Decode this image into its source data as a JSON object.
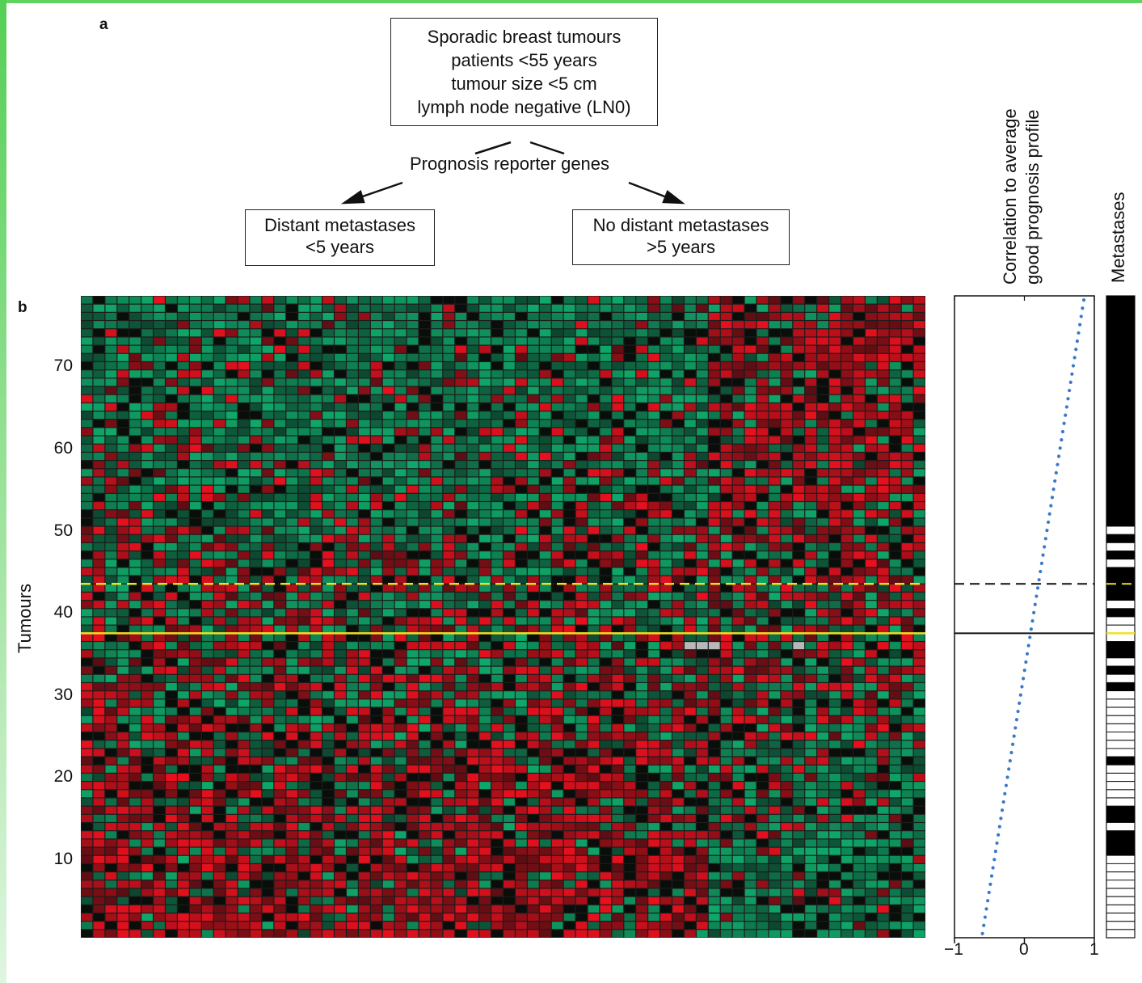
{
  "panel_a": {
    "letter": "a",
    "top_box": [
      "Sporadic breast tumours",
      "patients <55 years",
      "tumour size <5 cm",
      "lymph node negative (LN0)"
    ],
    "reporter_label": "Prognosis reporter genes",
    "left_box": [
      "Distant metastases",
      "<5 years"
    ],
    "right_box": [
      "No distant metastases",
      ">5 years"
    ]
  },
  "panel_b": {
    "letter": "b",
    "y_axis_label": "Tumours",
    "y_ticks": [
      "70",
      "60",
      "50",
      "40",
      "30",
      "20",
      "10"
    ],
    "correlation_title_line1": "Correlation to average",
    "correlation_title_line2": "good prognosis profile",
    "correlation_x_ticks": [
      "−1",
      "0",
      "1"
    ],
    "metastases_title": "Metastases"
  },
  "colors": {
    "heatmap_green": "#0fa86a",
    "heatmap_red": "#e8101e",
    "missing_grey": "#b8b8b8",
    "threshold_line": "#f0e020",
    "correlation_dots": "#3a78c8"
  },
  "chart_data": [
    {
      "type": "heatmap",
      "description_rows": "Tumours 1-78",
      "rows": 78,
      "columns": 70,
      "ylabel": "Tumours",
      "ylim": [
        1,
        78
      ],
      "optimized_threshold_tumour": 43.5,
      "threshold_tumour": 37.5
    },
    {
      "type": "scatter",
      "xlabel": "Correlation to average good prognosis profile",
      "xlim": [
        -1,
        1
      ],
      "ylim": [
        1,
        78
      ],
      "x_start": -0.6,
      "x_end": 0.85,
      "solid_threshold_correlation": 0.3,
      "dashed_threshold_correlation": 0.4
    },
    {
      "type": "table",
      "title": "Metastases",
      "metastases_by_tumour_1_to_78": [
        0,
        0,
        0,
        0,
        0,
        0,
        0,
        0,
        0,
        0,
        1,
        1,
        1,
        0,
        1,
        1,
        0,
        0,
        0,
        0,
        0,
        1,
        0,
        0,
        0,
        0,
        0,
        0,
        0,
        0,
        1,
        0,
        1,
        0,
        1,
        1,
        0,
        0,
        0,
        1,
        0,
        1,
        1,
        1,
        1,
        0,
        1,
        0,
        1,
        0,
        1,
        1,
        1,
        1,
        1,
        1,
        1,
        1,
        1,
        1,
        1,
        1,
        1,
        1,
        1,
        1,
        1,
        1,
        1,
        1,
        1,
        1,
        1,
        1,
        1,
        1,
        1,
        1
      ]
    }
  ]
}
